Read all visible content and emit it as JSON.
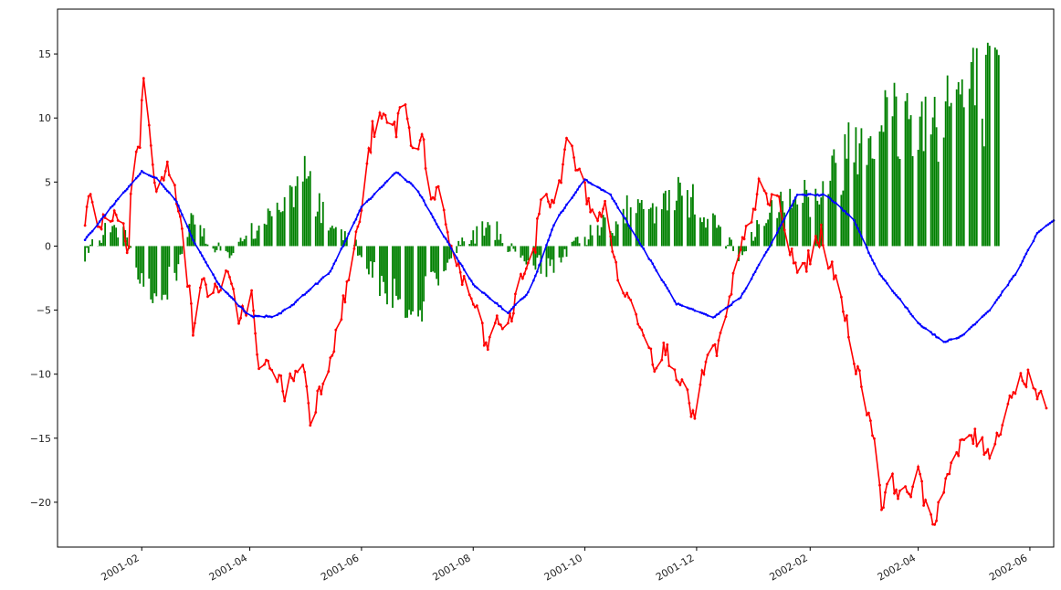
{
  "chart_data": {
    "type": "line",
    "title": "",
    "xlabel": "",
    "ylabel": "",
    "xlim": [
      "2000-12-17",
      "2002-06-14"
    ],
    "ylim": [
      -23.5,
      18.5
    ],
    "x_ticks": [
      "2001-02",
      "2001-04",
      "2001-06",
      "2001-08",
      "2001-10",
      "2001-12",
      "2002-02",
      "2002-04",
      "2002-06"
    ],
    "y_ticks": [
      -20,
      -15,
      -10,
      -5,
      0,
      5,
      10,
      15
    ],
    "grid": false,
    "legend": "none",
    "colors": {
      "bars": "#008000",
      "price": "#ff0000",
      "cycle": "#0000ff"
    },
    "x_start": "2001-01-01",
    "x_end": "2002-05-15",
    "series": [
      {
        "kind": "bar",
        "color": "#008000",
        "anchors": [
          [
            "2001-01-01",
            -1
          ],
          [
            "2001-01-10",
            1
          ],
          [
            "2001-01-20",
            2
          ],
          [
            "2001-02-01",
            -3
          ],
          [
            "2001-02-10",
            -5
          ],
          [
            "2001-02-20",
            -2
          ],
          [
            "2001-03-01",
            3
          ],
          [
            "2001-03-10",
            0
          ],
          [
            "2001-03-20",
            -1
          ],
          [
            "2001-04-01",
            1
          ],
          [
            "2001-04-15",
            3
          ],
          [
            "2001-05-01",
            6
          ],
          [
            "2001-05-15",
            2
          ],
          [
            "2001-05-25",
            1
          ],
          [
            "2001-06-01",
            -1
          ],
          [
            "2001-06-15",
            -4
          ],
          [
            "2001-07-01",
            -5
          ],
          [
            "2001-07-15",
            -2
          ],
          [
            "2001-07-25",
            0
          ],
          [
            "2001-08-10",
            2
          ],
          [
            "2001-08-25",
            -1
          ],
          [
            "2001-09-10",
            -2
          ],
          [
            "2001-09-25",
            0
          ],
          [
            "2001-10-10",
            2
          ],
          [
            "2001-10-25",
            3
          ],
          [
            "2001-11-10",
            3
          ],
          [
            "2001-11-25",
            5
          ],
          [
            "2001-12-10",
            2
          ],
          [
            "2001-12-25",
            -1
          ],
          [
            "2002-01-05",
            2
          ],
          [
            "2002-01-20",
            5
          ],
          [
            "2002-02-05",
            4
          ],
          [
            "2002-02-20",
            8
          ],
          [
            "2002-03-05",
            11
          ],
          [
            "2002-03-20",
            11
          ],
          [
            "2002-04-05",
            11
          ],
          [
            "2002-04-20",
            13
          ],
          [
            "2002-05-05",
            13
          ],
          [
            "2002-05-15",
            13
          ]
        ]
      },
      {
        "kind": "line",
        "color": "#ff0000",
        "anchors": [
          [
            "2001-01-01",
            1.5
          ],
          [
            "2001-01-04",
            4.5
          ],
          [
            "2001-01-08",
            1
          ],
          [
            "2001-01-14",
            2.5
          ],
          [
            "2001-01-20",
            2.5
          ],
          [
            "2001-01-25",
            -0.5
          ],
          [
            "2001-01-27",
            8
          ],
          [
            "2001-01-31",
            8
          ],
          [
            "2001-02-02",
            13.5
          ],
          [
            "2001-02-06",
            8.5
          ],
          [
            "2001-02-09",
            4
          ],
          [
            "2001-02-15",
            6
          ],
          [
            "2001-02-22",
            3
          ],
          [
            "2001-03-01",
            -6.5
          ],
          [
            "2001-03-05",
            -3
          ],
          [
            "2001-03-12",
            -3.5
          ],
          [
            "2001-03-20",
            -2.5
          ],
          [
            "2001-03-26",
            -5.5
          ],
          [
            "2001-04-02",
            -4
          ],
          [
            "2001-04-06",
            -10
          ],
          [
            "2001-04-13",
            -9
          ],
          [
            "2001-04-20",
            -11.5
          ],
          [
            "2001-04-25",
            -10
          ],
          [
            "2001-05-01",
            -9.5
          ],
          [
            "2001-05-04",
            -13.5
          ],
          [
            "2001-05-12",
            -10
          ],
          [
            "2001-05-20",
            -6
          ],
          [
            "2001-05-27",
            -1
          ],
          [
            "2001-06-01",
            3
          ],
          [
            "2001-06-07",
            9
          ],
          [
            "2001-06-13",
            10
          ],
          [
            "2001-06-20",
            9
          ],
          [
            "2001-06-23",
            12.5
          ],
          [
            "2001-06-28",
            8
          ],
          [
            "2001-07-05",
            8.5
          ],
          [
            "2001-07-08",
            3
          ],
          [
            "2001-07-13",
            4
          ],
          [
            "2001-07-20",
            0
          ],
          [
            "2001-07-27",
            -3
          ],
          [
            "2001-08-03",
            -5
          ],
          [
            "2001-08-08",
            -8
          ],
          [
            "2001-08-14",
            -6
          ],
          [
            "2001-08-21",
            -6
          ],
          [
            "2001-08-28",
            -2
          ],
          [
            "2001-09-03",
            -1
          ],
          [
            "2001-09-08",
            5
          ],
          [
            "2001-09-13",
            3
          ],
          [
            "2001-09-17",
            5
          ],
          [
            "2001-09-22",
            8.5
          ],
          [
            "2001-09-27",
            6
          ],
          [
            "2001-10-03",
            3.5
          ],
          [
            "2001-10-09",
            2
          ],
          [
            "2001-10-13",
            3.5
          ],
          [
            "2001-10-18",
            -2
          ],
          [
            "2001-10-24",
            -4
          ],
          [
            "2001-11-01",
            -6
          ],
          [
            "2001-11-08",
            -9
          ],
          [
            "2001-11-14",
            -8
          ],
          [
            "2001-11-21",
            -10
          ],
          [
            "2001-11-26",
            -12
          ],
          [
            "2001-11-30",
            -13.5
          ],
          [
            "2001-12-06",
            -9
          ],
          [
            "2001-12-12",
            -8
          ],
          [
            "2001-12-17",
            -6
          ],
          [
            "2001-12-22",
            -2
          ],
          [
            "2001-12-30",
            2
          ],
          [
            "2002-01-05",
            5
          ],
          [
            "2002-01-09",
            3
          ],
          [
            "2002-01-13",
            5
          ],
          [
            "2002-01-18",
            1
          ],
          [
            "2002-01-25",
            -2
          ],
          [
            "2002-02-01",
            -1
          ],
          [
            "2002-02-07",
            1
          ],
          [
            "2002-02-13",
            -2
          ],
          [
            "2002-02-18",
            -4
          ],
          [
            "2002-02-24",
            -8
          ],
          [
            "2002-03-01",
            -11
          ],
          [
            "2002-03-05",
            -13
          ],
          [
            "2002-03-08",
            -15
          ],
          [
            "2002-03-12",
            -20
          ],
          [
            "2002-03-18",
            -18.5
          ],
          [
            "2002-03-25",
            -19.5
          ],
          [
            "2002-04-01",
            -18
          ],
          [
            "2002-04-06",
            -20.5
          ],
          [
            "2002-04-10",
            -21.5
          ],
          [
            "2002-04-15",
            -18.5
          ],
          [
            "2002-04-22",
            -16.5
          ],
          [
            "2002-04-28",
            -14.5
          ],
          [
            "2002-05-05",
            -15.5
          ],
          [
            "2002-05-12",
            -16
          ],
          [
            "2002-05-18",
            -13
          ],
          [
            "2002-05-22",
            -11.5
          ],
          [
            "2002-05-27",
            -10.5
          ],
          [
            "2002-06-01",
            -10
          ],
          [
            "2002-06-06",
            -12
          ],
          [
            "2002-06-10",
            -12.5
          ]
        ]
      },
      {
        "kind": "line",
        "color": "#0000ff",
        "anchors": [
          [
            "2001-01-01",
            0.5
          ],
          [
            "2001-01-18",
            3.5
          ],
          [
            "2001-02-01",
            5.8
          ],
          [
            "2001-02-10",
            5.2
          ],
          [
            "2001-02-20",
            3.5
          ],
          [
            "2001-03-01",
            0.5
          ],
          [
            "2001-03-15",
            -3
          ],
          [
            "2001-04-01",
            -5.5
          ],
          [
            "2001-04-15",
            -5.5
          ],
          [
            "2001-04-25",
            -4.5
          ],
          [
            "2001-05-15",
            -2
          ],
          [
            "2001-06-01",
            3
          ],
          [
            "2001-06-20",
            5.8
          ],
          [
            "2001-07-01",
            4.5
          ],
          [
            "2001-07-15",
            1
          ],
          [
            "2001-08-01",
            -3
          ],
          [
            "2001-08-20",
            -5.2
          ],
          [
            "2001-09-01",
            -3.5
          ],
          [
            "2001-09-15",
            2
          ],
          [
            "2001-10-01",
            5.2
          ],
          [
            "2001-10-15",
            4
          ],
          [
            "2001-11-01",
            0
          ],
          [
            "2001-11-20",
            -4.5
          ],
          [
            "2001-12-10",
            -5.6
          ],
          [
            "2001-12-25",
            -4
          ],
          [
            "2002-01-10",
            0
          ],
          [
            "2002-01-25",
            4
          ],
          [
            "2002-02-10",
            4
          ],
          [
            "2002-02-25",
            2
          ],
          [
            "2002-03-10",
            -2
          ],
          [
            "2002-04-01",
            -6
          ],
          [
            "2002-04-15",
            -7.5
          ],
          [
            "2002-04-25",
            -7
          ],
          [
            "2002-05-10",
            -5
          ],
          [
            "2002-05-25",
            -2
          ],
          [
            "2002-06-05",
            1
          ],
          [
            "2002-06-14",
            2
          ]
        ]
      }
    ]
  }
}
